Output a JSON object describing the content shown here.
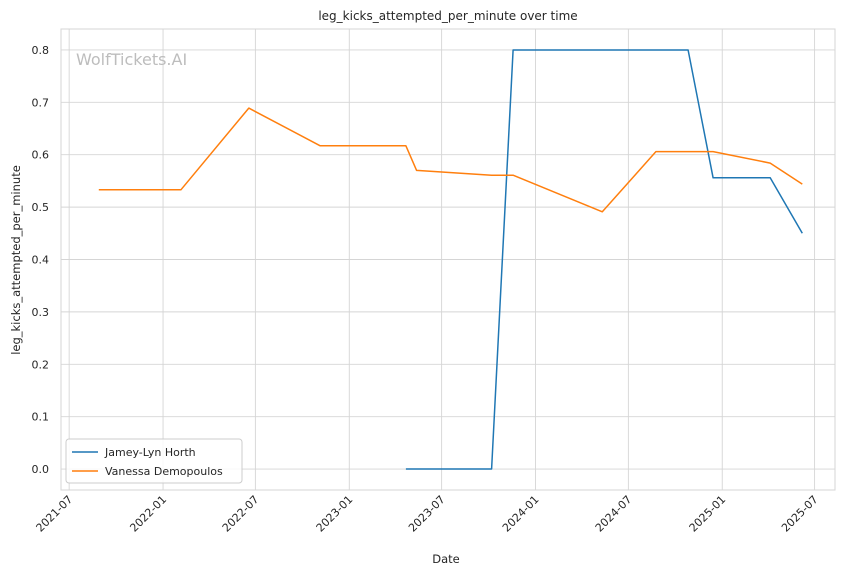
{
  "watermark": "WolfTickets.AI",
  "chart_data": {
    "type": "line",
    "title": "leg_kicks_attempted_per_minute over time",
    "xlabel": "Date",
    "ylabel": "leg_kicks_attempted_per_minute",
    "x_ticks": [
      "2021-07",
      "2022-01",
      "2022-07",
      "2023-01",
      "2023-07",
      "2024-01",
      "2024-07",
      "2025-01",
      "2025-07"
    ],
    "y_ticks": [
      "0.0",
      "0.1",
      "0.2",
      "0.3",
      "0.4",
      "0.5",
      "0.6",
      "0.7",
      "0.8"
    ],
    "xlim": [
      "2021-06-15",
      "2025-08-10"
    ],
    "ylim": [
      -0.04,
      0.84
    ],
    "grid": true,
    "legend": "lower-left",
    "series": [
      {
        "name": "Jamey-Lyn Horth",
        "color": "#1f77b4",
        "points": [
          {
            "x": "2023-04-22",
            "y": 0.0
          },
          {
            "x": "2023-10-07",
            "y": 0.0
          },
          {
            "x": "2023-11-18",
            "y": 0.8
          },
          {
            "x": "2024-10-26",
            "y": 0.8
          },
          {
            "x": "2024-12-14",
            "y": 0.556
          },
          {
            "x": "2025-04-05",
            "y": 0.556
          },
          {
            "x": "2025-06-07",
            "y": 0.45
          }
        ]
      },
      {
        "name": "Vanessa Demopoulos",
        "color": "#ff7f0e",
        "points": [
          {
            "x": "2021-08-28",
            "y": 0.533
          },
          {
            "x": "2022-02-05",
            "y": 0.533
          },
          {
            "x": "2022-06-18",
            "y": 0.689
          },
          {
            "x": "2022-11-05",
            "y": 0.617
          },
          {
            "x": "2023-04-22",
            "y": 0.617
          },
          {
            "x": "2023-05-13",
            "y": 0.57
          },
          {
            "x": "2023-10-07",
            "y": 0.561
          },
          {
            "x": "2023-11-18",
            "y": 0.561
          },
          {
            "x": "2024-05-11",
            "y": 0.491
          },
          {
            "x": "2024-08-24",
            "y": 0.606
          },
          {
            "x": "2024-12-14",
            "y": 0.606
          },
          {
            "x": "2025-04-05",
            "y": 0.584
          },
          {
            "x": "2025-06-07",
            "y": 0.544
          }
        ]
      }
    ]
  }
}
